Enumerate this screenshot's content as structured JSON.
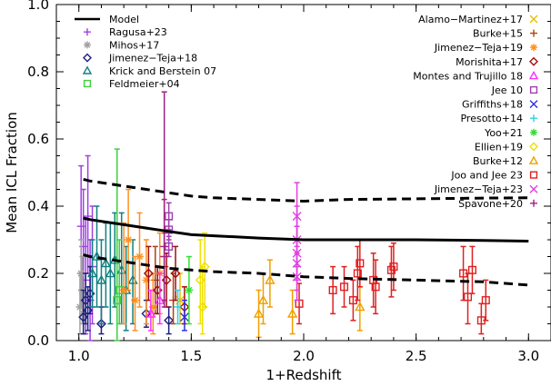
{
  "chart_data": {
    "type": "scatter",
    "xlabel": "1+Redshift",
    "ylabel": "Mean ICL Fraction",
    "xlim": [
      0.9,
      3.1
    ],
    "ylim": [
      0.0,
      1.0
    ],
    "xticks": [
      1.0,
      1.5,
      2.0,
      2.5,
      3.0
    ],
    "xtick_labels": [
      "1.0",
      "1.5",
      "2.0",
      "2.5",
      "3.0"
    ],
    "yticks": [
      0.0,
      0.2,
      0.4,
      0.6,
      0.8,
      1.0
    ],
    "ytick_labels": [
      "0.0",
      "0.2",
      "0.4",
      "0.6",
      "0.8",
      "1.0"
    ],
    "grid": false,
    "legend_left": [
      {
        "name": "Model",
        "color": "#000000",
        "marker": "line"
      },
      {
        "name": "Ragusa+23",
        "color": "#a040e0",
        "marker": "plus"
      },
      {
        "name": "Mihos+17",
        "color": "#a0a0a0",
        "marker": "star"
      },
      {
        "name": "Jimenez−Teja+18",
        "color": "#202080",
        "marker": "diamond"
      },
      {
        "name": "Krick and Berstein 07",
        "color": "#108080",
        "marker": "triangle"
      },
      {
        "name": "Feldmeier+04",
        "color": "#40d040",
        "marker": "square"
      }
    ],
    "legend_right": [
      {
        "name": "Alamo−Martinez+17",
        "color": "#e8c000",
        "marker": "x"
      },
      {
        "name": "Burke+15",
        "color": "#b04010",
        "marker": "plus"
      },
      {
        "name": "Jimenez−Teja+19",
        "color": "#ff9020",
        "marker": "star"
      },
      {
        "name": "Morishita+17",
        "color": "#a01010",
        "marker": "diamond"
      },
      {
        "name": "Montes and Trujillo 18",
        "color": "#ff30ff",
        "marker": "triangle"
      },
      {
        "name": "Jee 10",
        "color": "#a040b0",
        "marker": "square"
      },
      {
        "name": "Griffiths+18",
        "color": "#3030e0",
        "marker": "x"
      },
      {
        "name": "Presotto+14",
        "color": "#30d0e0",
        "marker": "plus"
      },
      {
        "name": "Yoo+21",
        "color": "#30e030",
        "marker": "star"
      },
      {
        "name": "Ellien+19",
        "color": "#f0e000",
        "marker": "diamond"
      },
      {
        "name": "Burke+12",
        "color": "#f0a000",
        "marker": "triangle"
      },
      {
        "name": "Joo and Jee 23",
        "color": "#e02020",
        "marker": "square"
      },
      {
        "name": "Jimenez−Teja+23",
        "color": "#e040e0",
        "marker": "x"
      },
      {
        "name": "Spavone+20",
        "color": "#a02080",
        "marker": "plus"
      }
    ],
    "model_line": {
      "name": "Model",
      "x": [
        1.02,
        1.05,
        1.1,
        1.2,
        1.3,
        1.4,
        1.5,
        1.6,
        1.8,
        2.0,
        2.2,
        2.5,
        2.8,
        3.0
      ],
      "y": [
        0.365,
        0.36,
        0.355,
        0.345,
        0.335,
        0.325,
        0.315,
        0.312,
        0.305,
        0.3,
        0.3,
        0.3,
        0.298,
        0.296
      ]
    },
    "model_upper": {
      "x": [
        1.02,
        1.05,
        1.1,
        1.2,
        1.3,
        1.4,
        1.5,
        1.6,
        1.8,
        2.0,
        2.2,
        2.5,
        2.8,
        3.0
      ],
      "y": [
        0.48,
        0.475,
        0.47,
        0.46,
        0.45,
        0.44,
        0.43,
        0.425,
        0.42,
        0.415,
        0.42,
        0.422,
        0.424,
        0.425
      ]
    },
    "model_lower": {
      "x": [
        1.02,
        1.05,
        1.1,
        1.2,
        1.3,
        1.4,
        1.5,
        1.6,
        1.8,
        2.0,
        2.2,
        2.5,
        2.8,
        3.0
      ],
      "y": [
        0.255,
        0.25,
        0.245,
        0.235,
        0.225,
        0.215,
        0.21,
        0.205,
        0.2,
        0.19,
        0.185,
        0.18,
        0.175,
        0.165
      ]
    },
    "series": [
      {
        "name": "Ragusa+23",
        "color": "#a040e0",
        "marker": "plus",
        "points": [
          {
            "x": 1.01,
            "y": 0.34,
            "lo": 0.15,
            "hi": 0.52
          },
          {
            "x": 1.02,
            "y": 0.28,
            "lo": 0.08,
            "hi": 0.45
          },
          {
            "x": 1.03,
            "y": 0.18,
            "lo": 0.02,
            "hi": 0.36
          },
          {
            "x": 1.04,
            "y": 0.37,
            "lo": 0.2,
            "hi": 0.55
          },
          {
            "x": 1.05,
            "y": 0.12,
            "lo": 0.0,
            "hi": 0.3
          },
          {
            "x": 1.06,
            "y": 0.22,
            "lo": 0.05,
            "hi": 0.4
          }
        ]
      },
      {
        "name": "Mihos+17",
        "color": "#a0a0a0",
        "marker": "star",
        "points": [
          {
            "x": 1.005,
            "y": 0.1,
            "lo": 0.02,
            "hi": 0.2
          },
          {
            "x": 1.01,
            "y": 0.2,
            "lo": 0.1,
            "hi": 0.3
          },
          {
            "x": 1.015,
            "y": 0.15,
            "lo": 0.05,
            "hi": 0.25
          },
          {
            "x": 1.02,
            "y": 0.08,
            "lo": 0.02,
            "hi": 0.15
          }
        ]
      },
      {
        "name": "Jimenez−Teja+18",
        "color": "#202080",
        "marker": "diamond",
        "points": [
          {
            "x": 1.02,
            "y": 0.07,
            "lo": 0.02,
            "hi": 0.15
          },
          {
            "x": 1.03,
            "y": 0.12,
            "lo": 0.05,
            "hi": 0.2
          },
          {
            "x": 1.04,
            "y": 0.09,
            "lo": 0.03,
            "hi": 0.16
          },
          {
            "x": 1.05,
            "y": 0.14,
            "lo": 0.08,
            "hi": 0.22
          },
          {
            "x": 1.1,
            "y": 0.05,
            "lo": 0.02,
            "hi": 0.1
          },
          {
            "x": 1.3,
            "y": 0.08,
            "lo": 0.04,
            "hi": 0.12
          },
          {
            "x": 1.4,
            "y": 0.06,
            "lo": 0.02,
            "hi": 0.1
          }
        ]
      },
      {
        "name": "Krick and Berstein 07",
        "color": "#108080",
        "marker": "triangle",
        "points": [
          {
            "x": 1.06,
            "y": 0.2,
            "lo": 0.1,
            "hi": 0.3
          },
          {
            "x": 1.08,
            "y": 0.25,
            "lo": 0.1,
            "hi": 0.4
          },
          {
            "x": 1.1,
            "y": 0.18,
            "lo": 0.05,
            "hi": 0.3
          },
          {
            "x": 1.12,
            "y": 0.23,
            "lo": 0.1,
            "hi": 0.35
          },
          {
            "x": 1.14,
            "y": 0.2,
            "lo": 0.05,
            "hi": 0.35
          },
          {
            "x": 1.16,
            "y": 0.24,
            "lo": 0.1,
            "hi": 0.38
          },
          {
            "x": 1.19,
            "y": 0.21,
            "lo": 0.05,
            "hi": 0.38
          },
          {
            "x": 1.21,
            "y": 0.15,
            "lo": 0.03,
            "hi": 0.28
          },
          {
            "x": 1.24,
            "y": 0.18,
            "lo": 0.05,
            "hi": 0.3
          }
        ]
      },
      {
        "name": "Feldmeier+04",
        "color": "#40d040",
        "marker": "square",
        "points": [
          {
            "x": 1.17,
            "y": 0.12,
            "lo": 0.0,
            "hi": 0.57
          },
          {
            "x": 1.18,
            "y": 0.15,
            "lo": 0.05,
            "hi": 0.3
          }
        ]
      },
      {
        "name": "Alamo−Martinez+17",
        "color": "#e8c000",
        "marker": "x",
        "points": [
          {
            "x": 1.45,
            "y": 0.12,
            "lo": 0.05,
            "hi": 0.2
          }
        ]
      },
      {
        "name": "Burke+15",
        "color": "#b04010",
        "marker": "plus",
        "points": [
          {
            "x": 1.34,
            "y": 0.18,
            "lo": 0.08,
            "hi": 0.28
          },
          {
            "x": 1.38,
            "y": 0.22,
            "lo": 0.12,
            "hi": 0.32
          },
          {
            "x": 1.42,
            "y": 0.12,
            "lo": 0.05,
            "hi": 0.2
          }
        ]
      },
      {
        "name": "Jimenez−Teja+19",
        "color": "#ff9020",
        "marker": "star",
        "points": [
          {
            "x": 1.2,
            "y": 0.15,
            "lo": 0.05,
            "hi": 0.35
          },
          {
            "x": 1.22,
            "y": 0.3,
            "lo": 0.15,
            "hi": 0.45
          },
          {
            "x": 1.25,
            "y": 0.12,
            "lo": 0.03,
            "hi": 0.25
          },
          {
            "x": 1.27,
            "y": 0.25,
            "lo": 0.1,
            "hi": 0.38
          },
          {
            "x": 1.3,
            "y": 0.18,
            "lo": 0.05,
            "hi": 0.3
          },
          {
            "x": 1.33,
            "y": 0.1,
            "lo": 0.02,
            "hi": 0.2
          },
          {
            "x": 1.36,
            "y": 0.2,
            "lo": 0.08,
            "hi": 0.32
          }
        ]
      },
      {
        "name": "Morishita+17",
        "color": "#a01010",
        "marker": "diamond",
        "points": [
          {
            "x": 1.31,
            "y": 0.2,
            "lo": 0.12,
            "hi": 0.28
          },
          {
            "x": 1.35,
            "y": 0.15,
            "lo": 0.08,
            "hi": 0.22
          },
          {
            "x": 1.39,
            "y": 0.18,
            "lo": 0.1,
            "hi": 0.26
          },
          {
            "x": 1.43,
            "y": 0.2,
            "lo": 0.12,
            "hi": 0.28
          },
          {
            "x": 1.47,
            "y": 0.1,
            "lo": 0.05,
            "hi": 0.16
          }
        ]
      },
      {
        "name": "Montes and Trujillo 18",
        "color": "#ff30ff",
        "marker": "triangle",
        "points": [
          {
            "x": 1.32,
            "y": 0.08,
            "lo": 0.03,
            "hi": 0.15
          },
          {
            "x": 1.36,
            "y": 0.12,
            "lo": 0.05,
            "hi": 0.2
          }
        ]
      },
      {
        "name": "Jee 10",
        "color": "#a040b0",
        "marker": "square",
        "points": [
          {
            "x": 1.4,
            "y": 0.37,
            "lo": 0.33,
            "hi": 0.41
          },
          {
            "x": 1.4,
            "y": 0.33,
            "lo": 0.3,
            "hi": 0.36
          },
          {
            "x": 1.4,
            "y": 0.28,
            "lo": 0.25,
            "hi": 0.31
          }
        ]
      },
      {
        "name": "Griffiths+18",
        "color": "#3030e0",
        "marker": "x",
        "points": [
          {
            "x": 1.47,
            "y": 0.07,
            "lo": 0.03,
            "hi": 0.12
          }
        ]
      },
      {
        "name": "Presotto+14",
        "color": "#30d0e0",
        "marker": "plus",
        "points": [
          {
            "x": 1.44,
            "y": 0.1,
            "lo": 0.05,
            "hi": 0.15
          }
        ]
      },
      {
        "name": "Yoo+21",
        "color": "#30e030",
        "marker": "star",
        "points": [
          {
            "x": 1.49,
            "y": 0.15,
            "lo": 0.05,
            "hi": 0.25
          }
        ]
      },
      {
        "name": "Ellien+19",
        "color": "#f0e000",
        "marker": "diamond",
        "points": [
          {
            "x": 1.54,
            "y": 0.18,
            "lo": 0.05,
            "hi": 0.3
          },
          {
            "x": 1.55,
            "y": 0.1,
            "lo": 0.02,
            "hi": 0.22
          },
          {
            "x": 1.56,
            "y": 0.22,
            "lo": 0.1,
            "hi": 0.32
          }
        ]
      },
      {
        "name": "Burke+12",
        "color": "#f0a000",
        "marker": "triangle",
        "points": [
          {
            "x": 1.8,
            "y": 0.08,
            "lo": 0.01,
            "hi": 0.15
          },
          {
            "x": 1.82,
            "y": 0.12,
            "lo": 0.05,
            "hi": 0.2
          },
          {
            "x": 1.85,
            "y": 0.18,
            "lo": 0.1,
            "hi": 0.24
          },
          {
            "x": 1.95,
            "y": 0.08,
            "lo": 0.02,
            "hi": 0.15
          },
          {
            "x": 2.25,
            "y": 0.1,
            "lo": 0.03,
            "hi": 0.16
          }
        ]
      },
      {
        "name": "Joo and Jee 23",
        "color": "#e02020",
        "marker": "square",
        "points": [
          {
            "x": 1.98,
            "y": 0.11,
            "lo": 0.05,
            "hi": 0.17
          },
          {
            "x": 2.13,
            "y": 0.15,
            "lo": 0.08,
            "hi": 0.22
          },
          {
            "x": 2.18,
            "y": 0.16,
            "lo": 0.1,
            "hi": 0.22
          },
          {
            "x": 2.22,
            "y": 0.12,
            "lo": 0.06,
            "hi": 0.18
          },
          {
            "x": 2.24,
            "y": 0.2,
            "lo": 0.12,
            "hi": 0.28
          },
          {
            "x": 2.25,
            "y": 0.23,
            "lo": 0.16,
            "hi": 0.3
          },
          {
            "x": 2.31,
            "y": 0.18,
            "lo": 0.1,
            "hi": 0.26
          },
          {
            "x": 2.32,
            "y": 0.16,
            "lo": 0.08,
            "hi": 0.24
          },
          {
            "x": 2.39,
            "y": 0.21,
            "lo": 0.13,
            "hi": 0.28
          },
          {
            "x": 2.4,
            "y": 0.22,
            "lo": 0.15,
            "hi": 0.29
          },
          {
            "x": 2.71,
            "y": 0.2,
            "lo": 0.12,
            "hi": 0.28
          },
          {
            "x": 2.73,
            "y": 0.13,
            "lo": 0.05,
            "hi": 0.2
          },
          {
            "x": 2.75,
            "y": 0.21,
            "lo": 0.14,
            "hi": 0.28
          },
          {
            "x": 2.79,
            "y": 0.06,
            "lo": 0.02,
            "hi": 0.11
          },
          {
            "x": 2.81,
            "y": 0.12,
            "lo": 0.06,
            "hi": 0.18
          }
        ]
      },
      {
        "name": "Jimenez−Teja+23",
        "color": "#e040e0",
        "marker": "x",
        "points": [
          {
            "x": 1.97,
            "y": 0.37,
            "lo": 0.28,
            "hi": 0.47
          },
          {
            "x": 1.97,
            "y": 0.3,
            "lo": 0.22,
            "hi": 0.4
          },
          {
            "x": 1.97,
            "y": 0.26,
            "lo": 0.18,
            "hi": 0.34
          },
          {
            "x": 1.97,
            "y": 0.23,
            "lo": 0.15,
            "hi": 0.3
          },
          {
            "x": 1.97,
            "y": 0.19,
            "lo": 0.12,
            "hi": 0.26
          }
        ]
      },
      {
        "name": "Spavone+20",
        "color": "#a02080",
        "marker": "plus",
        "points": [
          {
            "x": 1.38,
            "y": 0.28,
            "lo": 0.12,
            "hi": 0.74
          },
          {
            "x": 1.38,
            "y": 0.25,
            "lo": 0.1,
            "hi": 0.42
          }
        ]
      }
    ]
  }
}
